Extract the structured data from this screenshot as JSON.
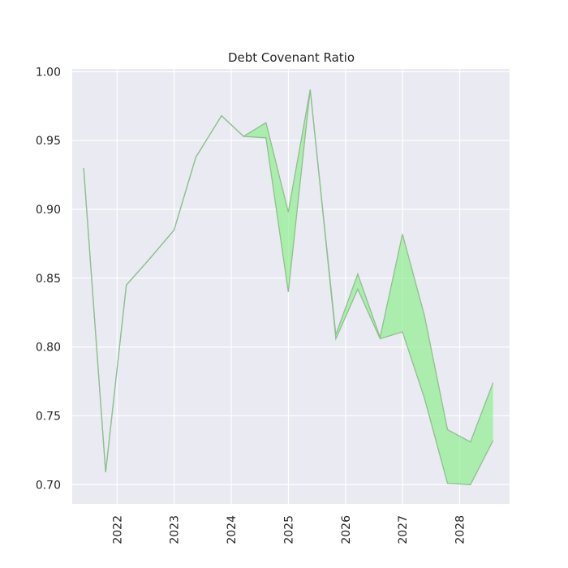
{
  "chart_data": {
    "type": "area",
    "title": "Debt Covenant Ratio",
    "xlabel": "",
    "ylabel": "",
    "x_ticks": [
      "2022",
      "2023",
      "2024",
      "2025",
      "2026",
      "2027",
      "2028"
    ],
    "y_ticks": [
      "0.70",
      "0.75",
      "0.80",
      "0.85",
      "0.90",
      "0.95",
      "1.00"
    ],
    "x_range": [
      "2021-03-20",
      "2028-11-15"
    ],
    "ylim": [
      0.686,
      1.002
    ],
    "grid": true,
    "fill_color": "#90ee90",
    "line_color": "#8fbf8f",
    "background": "#eaeaf2",
    "x": [
      "2021-06-01",
      "2021-10-20",
      "2022-03-01",
      "2022-07-20",
      "2022-12-31",
      "2023-05-20",
      "2023-10-31",
      "2024-03-20",
      "2024-08-10",
      "2024-12-31",
      "2025-05-20",
      "2025-10-31",
      "2026-03-20",
      "2026-08-10",
      "2026-12-31",
      "2027-05-20",
      "2027-10-15",
      "2028-03-10",
      "2028-08-01"
    ],
    "series": [
      {
        "values": [
          0.93,
          0.709,
          0.845,
          0.863,
          0.885,
          0.938,
          0.968,
          0.953,
          0.963,
          0.898,
          0.987,
          0.809,
          0.853,
          0.807,
          0.882,
          0.823,
          0.74,
          0.731,
          0.774
        ]
      },
      {
        "values": [
          0.93,
          0.709,
          0.845,
          0.863,
          0.885,
          0.938,
          0.968,
          0.953,
          0.952,
          0.84,
          0.987,
          0.806,
          0.842,
          0.806,
          0.811,
          0.763,
          0.701,
          0.7,
          0.732
        ]
      }
    ]
  }
}
